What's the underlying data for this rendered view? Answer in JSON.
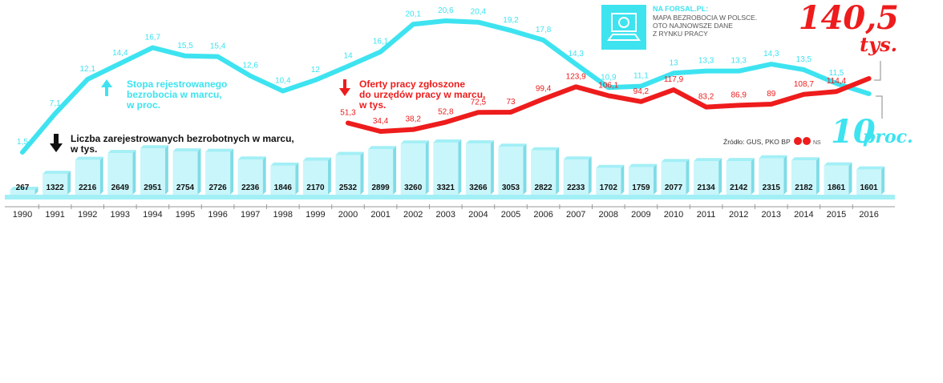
{
  "chart_data": {
    "type": "bar",
    "categories": [
      "1990",
      "1991",
      "1992",
      "1993",
      "1994",
      "1995",
      "1996",
      "1997",
      "1998",
      "1999",
      "2000",
      "2001",
      "2002",
      "2003",
      "2004",
      "2005",
      "2006",
      "2007",
      "2008",
      "2009",
      "2010",
      "2011",
      "2012",
      "2013",
      "2014",
      "2015",
      "2016"
    ],
    "bar_series": {
      "name": "Liczba zarejestrowanych bezrobotnych w marcu, w tys.",
      "values": [
        267,
        1322,
        2216,
        2649,
        2951,
        2754,
        2726,
        2236,
        1846,
        2170,
        2532,
        2899,
        3260,
        3321,
        3266,
        3053,
        2822,
        2233,
        1702,
        1759,
        2077,
        2134,
        2142,
        2315,
        2182,
        1861,
        1601
      ],
      "labels": [
        "267",
        "1322",
        "2216",
        "2649",
        "2951",
        "2754",
        "2726",
        "2236",
        "1846",
        "2170",
        "2532",
        "2899",
        "3260",
        "3321",
        "3266",
        "3053",
        "2822",
        "2233",
        "1702",
        "1759",
        "2077",
        "2134",
        "2142",
        "2315",
        "2182",
        "1861",
        "1601"
      ]
    },
    "rate_series": {
      "name": "Stopa rejestrowanego bezrobocia w marcu, w proc.",
      "values": [
        1.5,
        7.1,
        12.1,
        14.4,
        16.7,
        15.5,
        15.4,
        12.6,
        10.4,
        12,
        14,
        16.1,
        20.1,
        20.6,
        20.4,
        19.2,
        17.8,
        14.3,
        10.9,
        11.1,
        13,
        13.3,
        13.3,
        14.3,
        13.5,
        11.5,
        10
      ],
      "labels": [
        "1,5",
        "7,1",
        "12,1",
        "14,4",
        "16,7",
        "15,5",
        "15,4",
        "12,6",
        "10,4",
        "12",
        "14",
        "16,1",
        "20,1",
        "20,6",
        "20,4",
        "19,2",
        "17,8",
        "14,3",
        "10,9",
        "11,1",
        "13",
        "13,3",
        "13,3",
        "14,3",
        "13,5",
        "11,5",
        ""
      ]
    },
    "offers_series": {
      "name": "Oferty pracy zgłoszone do urzędów pracy w marcu, w tys.",
      "start_index": 10,
      "values": [
        51.3,
        34.4,
        38.2,
        52.8,
        72.5,
        73,
        99.4,
        123.9,
        106.1,
        94.2,
        117.9,
        83.2,
        86.9,
        89,
        108.7,
        114.4,
        140.5
      ],
      "labels": [
        "51,3",
        "34,4",
        "38,2",
        "52,8",
        "72,5",
        "73",
        "99,4",
        "123,9",
        "106,1",
        "94,2",
        "117,9",
        "83,2",
        "86,9",
        "89",
        "108,7",
        "114,4",
        ""
      ]
    },
    "colors": {
      "rate": "#3ee3f0",
      "offers": "#ee1c1c",
      "bar_top": "#a3eff6",
      "bar_front": "#c9f6fa",
      "bar_side": "#7fdce6"
    }
  },
  "captions": {
    "rate": [
      "Stopa rejestrowanego",
      "bezrobocia w marcu,",
      "w proc."
    ],
    "offers": [
      "Oferty pracy zgłoszone",
      "do urzędów pracy w marcu,",
      "w tys."
    ],
    "bars": [
      "Liczba zarejestrowanych bezrobotnych w marcu,",
      "w tys."
    ]
  },
  "callouts": {
    "offers_value": "140,5",
    "offers_unit": "tys.",
    "rate_value": "10",
    "rate_unit": "proc."
  },
  "promo": {
    "site": "NA FORSAL.PL:",
    "lines": [
      "MAPA BEZROBOCIA W POLSCE.",
      "OTO NAJNOWSZE DANE",
      "Z RYNKU PRACY"
    ],
    "icon": "computer-icon"
  },
  "source": {
    "text": "Źródło: GUS, PKO BP",
    "credit": "NS",
    "logo": "copyright-logo"
  }
}
